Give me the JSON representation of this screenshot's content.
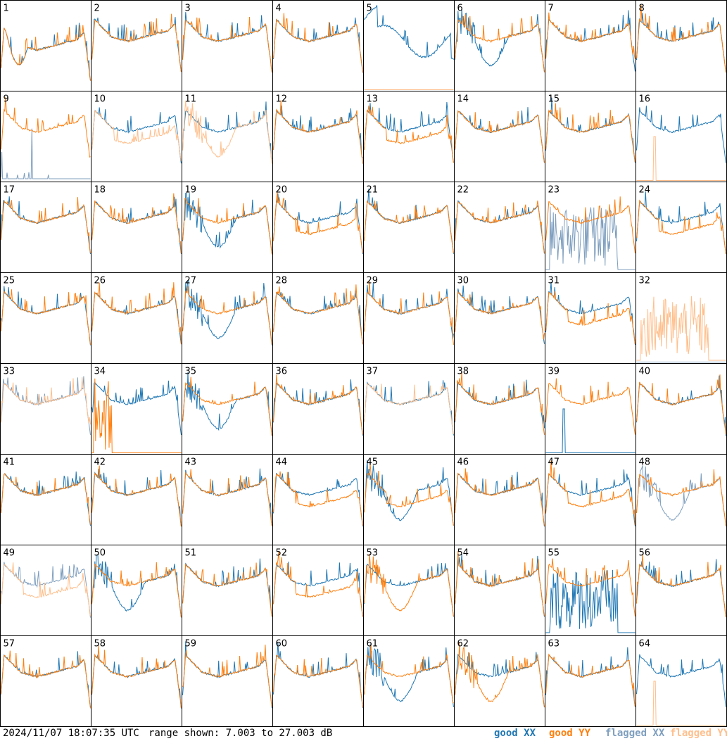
{
  "footer": {
    "timestamp": "2024/11/07 18:07:35 UTC",
    "range_text": "range shown: 7.003 to 27.003 dB"
  },
  "legend": {
    "good_xx": "good XX",
    "good_yy": "good YY",
    "flagged_xx": "flagged XX",
    "flagged_yy": "flagged YY"
  },
  "colors": {
    "good_xx": "#1f77b4",
    "good_yy": "#ff7f0e",
    "flagged_xx": "#7f9fbf",
    "flagged_yy": "#ffbf8c"
  },
  "chart_data": {
    "type": "line",
    "layout": "8x8 small multiples",
    "ylim": [
      7.003,
      27.003
    ],
    "y_unit": "dB",
    "panels": [
      {
        "label": "1",
        "xx": "good",
        "yy": "good",
        "xx_shape": "bumpy_low",
        "yy_shape": "bumpy_low",
        "yy_drop": true
      },
      {
        "label": "2",
        "xx": "good",
        "yy": "good",
        "xx_shape": "normal",
        "yy_shape": "normal"
      },
      {
        "label": "3",
        "xx": "good",
        "yy": "good",
        "xx_shape": "normal",
        "yy_shape": "normal"
      },
      {
        "label": "4",
        "xx": "good",
        "yy": "good",
        "xx_shape": "normal",
        "yy_shape": "normal"
      },
      {
        "label": "5",
        "xx": "good",
        "yy": "flagged",
        "xx_shape": "wave5",
        "yy_shape": "zero"
      },
      {
        "label": "6",
        "xx": "good",
        "yy": "good",
        "xx_shape": "dip",
        "yy_shape": "normal"
      },
      {
        "label": "7",
        "xx": "good",
        "yy": "good",
        "xx_shape": "normal",
        "yy_shape": "normal"
      },
      {
        "label": "8",
        "xx": "good",
        "yy": "good",
        "xx_shape": "normal",
        "yy_shape": "normal"
      },
      {
        "label": "9",
        "xx": "flagged",
        "yy": "good",
        "xx_shape": "spiky_low",
        "yy_shape": "normal"
      },
      {
        "label": "10",
        "xx": "good",
        "yy": "flagged",
        "xx_shape": "normal",
        "yy_shape": "lower"
      },
      {
        "label": "11",
        "xx": "good",
        "yy": "flagged",
        "xx_shape": "normal",
        "yy_shape": "dip"
      },
      {
        "label": "12",
        "xx": "good",
        "yy": "good",
        "xx_shape": "normal",
        "yy_shape": "normal"
      },
      {
        "label": "13",
        "xx": "good",
        "yy": "good",
        "xx_shape": "normal",
        "yy_shape": "lower"
      },
      {
        "label": "14",
        "xx": "good",
        "yy": "good",
        "xx_shape": "normal",
        "yy_shape": "normal"
      },
      {
        "label": "15",
        "xx": "good",
        "yy": "good",
        "xx_shape": "normal",
        "yy_shape": "normal"
      },
      {
        "label": "16",
        "xx": "good",
        "yy": "flagged",
        "xx_shape": "normal",
        "yy_shape": "zero_spike"
      },
      {
        "label": "17",
        "xx": "good",
        "yy": "good",
        "xx_shape": "normal",
        "yy_shape": "normal"
      },
      {
        "label": "18",
        "xx": "good",
        "yy": "good",
        "xx_shape": "normal",
        "yy_shape": "normal"
      },
      {
        "label": "19",
        "xx": "good",
        "yy": "good",
        "xx_shape": "dip",
        "yy_shape": "normal"
      },
      {
        "label": "20",
        "xx": "good",
        "yy": "good",
        "xx_shape": "normal",
        "yy_shape": "lower"
      },
      {
        "label": "21",
        "xx": "good",
        "yy": "good",
        "xx_shape": "normal",
        "yy_shape": "normal"
      },
      {
        "label": "22",
        "xx": "good",
        "yy": "good",
        "xx_shape": "normal",
        "yy_shape": "normal"
      },
      {
        "label": "23",
        "xx": "flagged",
        "yy": "good",
        "xx_shape": "noise",
        "yy_shape": "normal"
      },
      {
        "label": "24",
        "xx": "good",
        "yy": "good",
        "xx_shape": "normal",
        "yy_shape": "lower"
      },
      {
        "label": "25",
        "xx": "good",
        "yy": "good",
        "xx_shape": "normal",
        "yy_shape": "normal"
      },
      {
        "label": "26",
        "xx": "good",
        "yy": "good",
        "xx_shape": "normal",
        "yy_shape": "normal"
      },
      {
        "label": "27",
        "xx": "good",
        "yy": "good",
        "xx_shape": "dip",
        "yy_shape": "normal"
      },
      {
        "label": "28",
        "xx": "good",
        "yy": "good",
        "xx_shape": "normal",
        "yy_shape": "normal"
      },
      {
        "label": "29",
        "xx": "good",
        "yy": "good",
        "xx_shape": "normal",
        "yy_shape": "normal"
      },
      {
        "label": "30",
        "xx": "good",
        "yy": "good",
        "xx_shape": "normal",
        "yy_shape": "normal"
      },
      {
        "label": "31",
        "xx": "good",
        "yy": "good",
        "xx_shape": "normal",
        "yy_shape": "lower"
      },
      {
        "label": "32",
        "xx": "flagged",
        "yy": "flagged",
        "xx_shape": "zero",
        "yy_shape": "noise"
      },
      {
        "label": "33",
        "xx": "flagged",
        "yy": "flagged",
        "xx_shape": "normal",
        "yy_shape": "normal"
      },
      {
        "label": "34",
        "xx": "good",
        "yy": "good",
        "xx_shape": "normal",
        "yy_shape": "zero_noise"
      },
      {
        "label": "35",
        "xx": "good",
        "yy": "good",
        "xx_shape": "dip",
        "yy_shape": "normal"
      },
      {
        "label": "36",
        "xx": "good",
        "yy": "good",
        "xx_shape": "normal",
        "yy_shape": "normal"
      },
      {
        "label": "37",
        "xx": "good",
        "yy": "flagged",
        "xx_shape": "normal",
        "yy_shape": "normal"
      },
      {
        "label": "38",
        "xx": "good",
        "yy": "good",
        "xx_shape": "normal",
        "yy_shape": "normal"
      },
      {
        "label": "39",
        "xx": "good",
        "yy": "good",
        "xx_shape": "zero_spike",
        "yy_shape": "normal"
      },
      {
        "label": "40",
        "xx": "good",
        "yy": "good",
        "xx_shape": "normal",
        "yy_shape": "normal"
      },
      {
        "label": "41",
        "xx": "good",
        "yy": "good",
        "xx_shape": "normal",
        "yy_shape": "normal"
      },
      {
        "label": "42",
        "xx": "good",
        "yy": "good",
        "xx_shape": "normal",
        "yy_shape": "normal"
      },
      {
        "label": "43",
        "xx": "good",
        "yy": "good",
        "xx_shape": "normal",
        "yy_shape": "normal"
      },
      {
        "label": "44",
        "xx": "good",
        "yy": "good",
        "xx_shape": "normal",
        "yy_shape": "lower"
      },
      {
        "label": "45",
        "xx": "good",
        "yy": "good",
        "xx_shape": "dip",
        "yy_shape": "lower"
      },
      {
        "label": "46",
        "xx": "good",
        "yy": "good",
        "xx_shape": "normal",
        "yy_shape": "normal"
      },
      {
        "label": "47",
        "xx": "good",
        "yy": "good",
        "xx_shape": "normal",
        "yy_shape": "lower"
      },
      {
        "label": "48",
        "xx": "flagged",
        "yy": "good",
        "xx_shape": "dip",
        "yy_shape": "normal"
      },
      {
        "label": "49",
        "xx": "flagged",
        "yy": "flagged",
        "xx_shape": "normal",
        "yy_shape": "lower"
      },
      {
        "label": "50",
        "xx": "good",
        "yy": "good",
        "xx_shape": "dip",
        "yy_shape": "normal"
      },
      {
        "label": "51",
        "xx": "good",
        "yy": "good",
        "xx_shape": "normal",
        "yy_shape": "normal"
      },
      {
        "label": "52",
        "xx": "good",
        "yy": "good",
        "xx_shape": "normal",
        "yy_shape": "lower"
      },
      {
        "label": "53",
        "xx": "good",
        "yy": "good",
        "xx_shape": "normal",
        "yy_shape": "dip"
      },
      {
        "label": "54",
        "xx": "good",
        "yy": "good",
        "xx_shape": "normal",
        "yy_shape": "normal"
      },
      {
        "label": "55",
        "xx": "good",
        "yy": "good",
        "xx_shape": "noise",
        "yy_shape": "normal"
      },
      {
        "label": "56",
        "xx": "good",
        "yy": "good",
        "xx_shape": "normal",
        "yy_shape": "normal"
      },
      {
        "label": "57",
        "xx": "good",
        "yy": "good",
        "xx_shape": "normal",
        "yy_shape": "normal"
      },
      {
        "label": "58",
        "xx": "good",
        "yy": "good",
        "xx_shape": "normal",
        "yy_shape": "normal"
      },
      {
        "label": "59",
        "xx": "good",
        "yy": "good",
        "xx_shape": "normal",
        "yy_shape": "normal"
      },
      {
        "label": "60",
        "xx": "good",
        "yy": "good",
        "xx_shape": "normal",
        "yy_shape": "normal"
      },
      {
        "label": "61",
        "xx": "good",
        "yy": "good",
        "xx_shape": "dip",
        "yy_shape": "normal"
      },
      {
        "label": "62",
        "xx": "good",
        "yy": "good",
        "xx_shape": "normal",
        "yy_shape": "dip"
      },
      {
        "label": "63",
        "xx": "good",
        "yy": "good",
        "xx_shape": "normal",
        "yy_shape": "normal"
      },
      {
        "label": "64",
        "xx": "good",
        "yy": "flagged",
        "xx_shape": "normal",
        "yy_shape": "zero_spike"
      }
    ]
  }
}
